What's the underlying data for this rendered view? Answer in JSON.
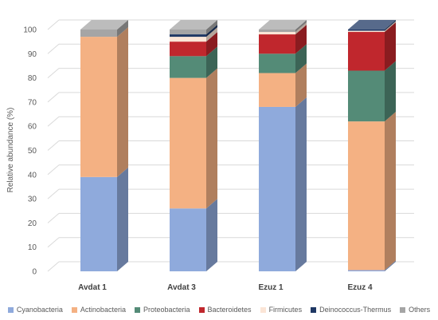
{
  "chart_data": {
    "type": "bar",
    "stacked": true,
    "three_d": true,
    "ylabel": "Relative abundance (%)",
    "ylim": [
      0,
      100
    ],
    "yticks": [
      "0",
      "10",
      "20",
      "30",
      "40",
      "50",
      "60",
      "70",
      "80",
      "90",
      "100"
    ],
    "gridlines": true,
    "legend_position": "bottom",
    "categories": [
      "Avdat 1",
      "Avdat 3",
      "Ezuz 1",
      "Ezuz 4"
    ],
    "series": [
      {
        "name": "Cyanobacteria",
        "color": "#8FAADC",
        "values": [
          39,
          26,
          68,
          0.5
        ]
      },
      {
        "name": "Actinobacteria",
        "color": "#F4B183",
        "values": [
          58,
          54,
          14,
          61.5
        ]
      },
      {
        "name": "Proteobacteria",
        "color": "#548B77",
        "values": [
          0,
          9,
          8,
          21
        ]
      },
      {
        "name": "Bacteroidetes",
        "color": "#C0272D",
        "values": [
          0,
          6,
          8,
          16
        ]
      },
      {
        "name": "Firmicutes",
        "color": "#FBE5D6",
        "values": [
          0,
          2,
          1,
          0.5
        ]
      },
      {
        "name": "Deinococcus-Thermus",
        "color": "#1F3864",
        "values": [
          0,
          1,
          0,
          0.5
        ]
      },
      {
        "name": "Others",
        "color": "#A5A5A5",
        "values": [
          3,
          2,
          1,
          0
        ]
      }
    ]
  }
}
